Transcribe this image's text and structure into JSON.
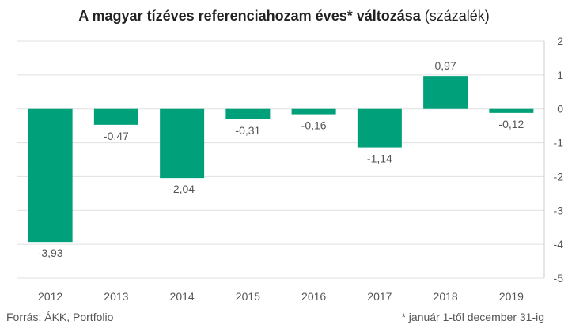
{
  "title": {
    "bold": "A magyar tízéves referenciahozam éves* változása",
    "normal": " (százalék)"
  },
  "source": "Forrás: ÁKK, Portfolio",
  "note": "* január 1-től december 31-ig",
  "chart_data": {
    "type": "bar",
    "categories": [
      "2012",
      "2013",
      "2014",
      "2015",
      "2016",
      "2017",
      "2018",
      "2019"
    ],
    "values": [
      -3.93,
      -0.47,
      -2.04,
      -0.31,
      -0.16,
      -1.14,
      0.97,
      -0.12
    ],
    "data_labels": [
      "-3,93",
      "-0,47",
      "-2,04",
      "-0,31",
      "-0,16",
      "-1,14",
      "0,97",
      "-0,12"
    ],
    "y_ticks": [
      2,
      1,
      0,
      -1,
      -2,
      -3,
      -4,
      -5
    ],
    "ylim": [
      -5,
      2
    ],
    "y_axis_side": "right",
    "grid": true,
    "bar_color": "#00a07a",
    "grid_color": "#e0e0e0",
    "axis_color": "#cccccc"
  }
}
